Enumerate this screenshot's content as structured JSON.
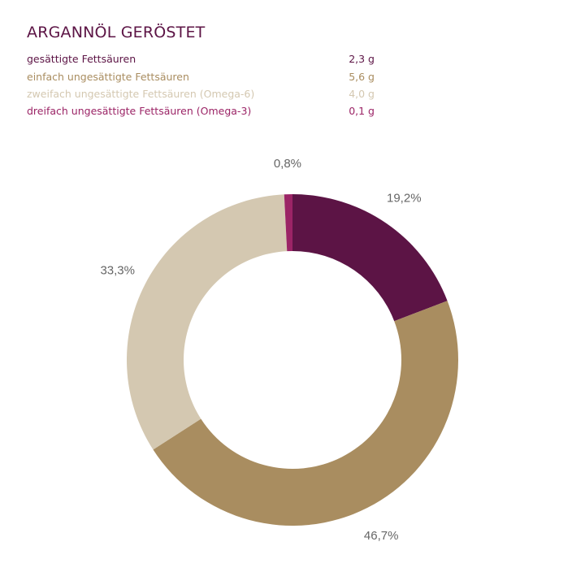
{
  "chart_data": {
    "type": "pie",
    "variant": "donut",
    "title": "ARGANNÖL GERÖSTET",
    "legend": [
      {
        "name": "gesättigte Fettsäuren",
        "amount": "2,3 g",
        "color": "#5c1445"
      },
      {
        "name": "einfach ungesättigte Fettsäuren",
        "amount": "5,6 g",
        "color": "#a98d60"
      },
      {
        "name": "zweifach ungesättigte Fettsäuren (Omega-6)",
        "amount": "4,0 g",
        "color": "#d4c8b1"
      },
      {
        "name": "dreifach ungesättigte Fettsäuren (Omega-3)",
        "amount": "0,1 g",
        "color": "#9b2466"
      }
    ],
    "slices": [
      {
        "value": 19.2,
        "label": "19,2%",
        "color": "#5c1445"
      },
      {
        "value": 46.7,
        "label": "46,7%",
        "color": "#a98d60"
      },
      {
        "value": 33.3,
        "label": "33,3%",
        "color": "#d4c8b1"
      },
      {
        "value": 0.8,
        "label": "0,8%",
        "color": "#9b2466"
      }
    ],
    "legend_placement": "top-left"
  }
}
